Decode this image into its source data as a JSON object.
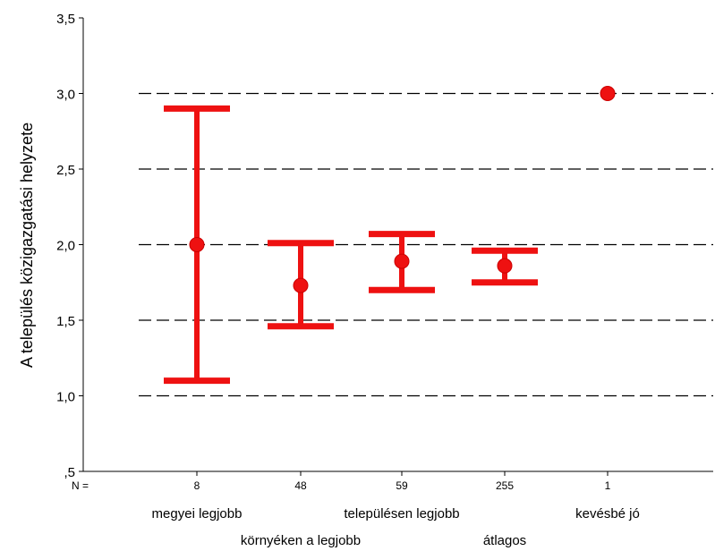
{
  "chart_data": {
    "type": "errorbar",
    "ylabel": "A település közigazgatási helyzete",
    "xlabel": "",
    "ylim": [
      0.5,
      3.5
    ],
    "yticks": [
      0.5,
      1.0,
      1.5,
      2.0,
      2.5,
      3.0,
      3.5
    ],
    "ytick_labels": [
      ",5",
      "1,0",
      "1,5",
      "2,0",
      "2,5",
      "3,0",
      "3,5"
    ],
    "n_label": "N =",
    "categories": [
      "megyei legjobb",
      "környéken a legjobb",
      "településen legjobb",
      "átlagos",
      "kevésbé jó"
    ],
    "n_values": [
      "8",
      "48",
      "59",
      "255",
      "1"
    ],
    "means": [
      2.0,
      1.73,
      1.89,
      1.86,
      3.0
    ],
    "lower": [
      1.1,
      1.46,
      1.7,
      1.75,
      3.0
    ],
    "upper": [
      2.9,
      2.01,
      2.07,
      1.96,
      3.0
    ],
    "reference_lines": [
      1.0,
      1.5,
      2.0,
      2.5,
      3.0
    ],
    "grid": "horizontal dashed",
    "series_color": "#ee1111"
  }
}
